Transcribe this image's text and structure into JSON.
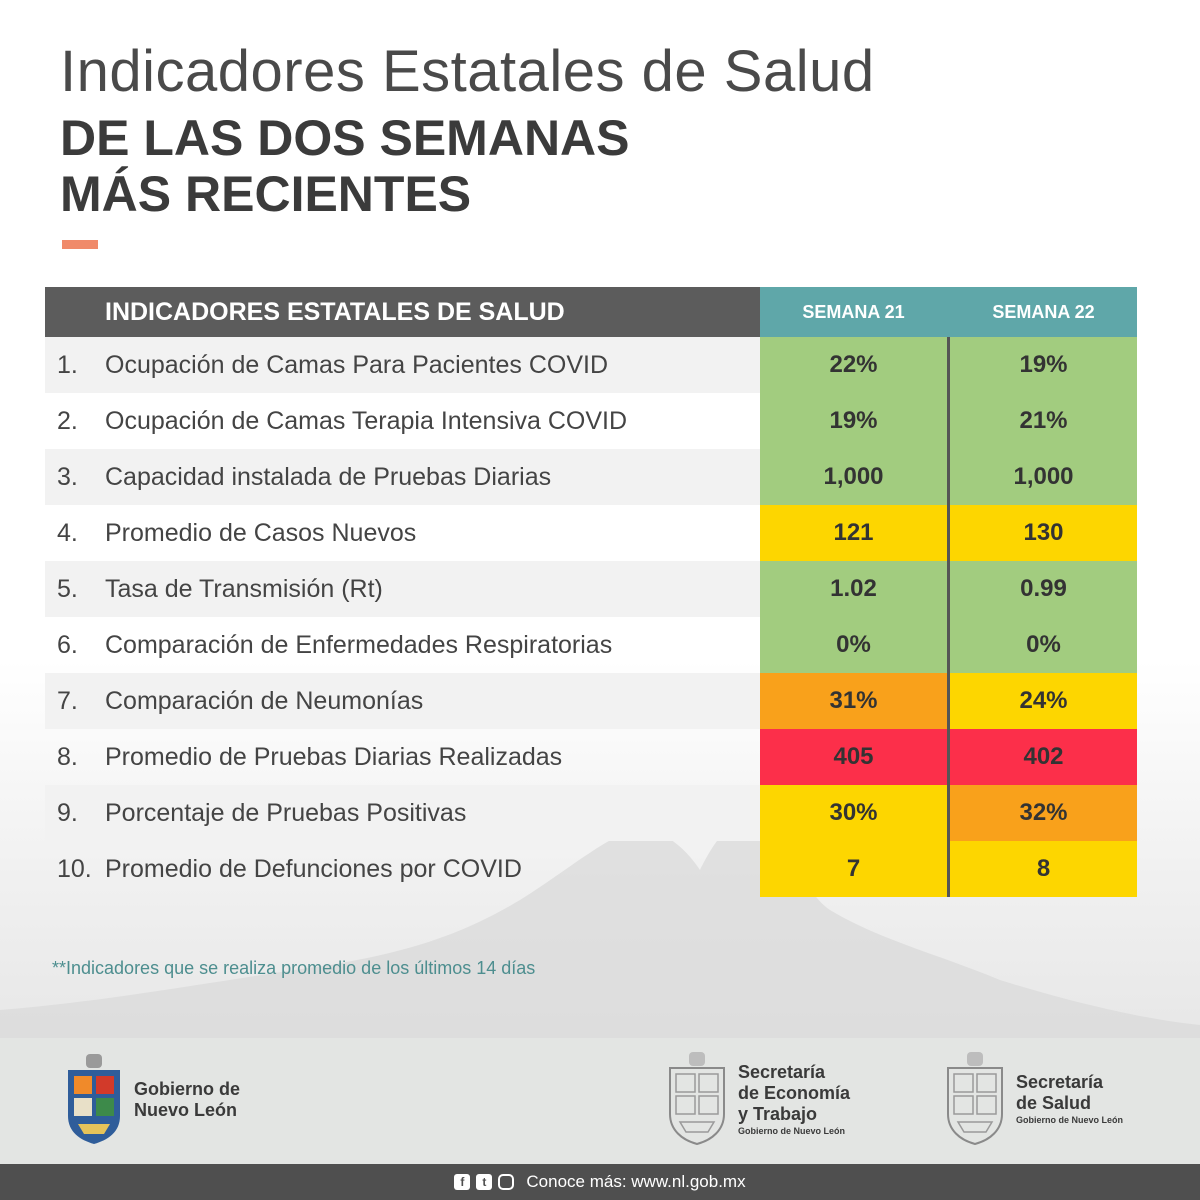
{
  "header": {
    "title_light": "Indicadores Estatales de Salud",
    "title_bold_line1": "DE LAS DOS SEMANAS",
    "title_bold_line2": "MÁS RECIENTES",
    "accent_color": "#f08a6a"
  },
  "table": {
    "header_main": "INDICADORES ESTATALES DE SALUD",
    "week1_label": "SEMANA 21",
    "week2_label": "SEMANA 22",
    "rows": [
      {
        "num": "1.",
        "label": "Ocupación de Camas Para Pacientes COVID",
        "w1": "22%",
        "w1_color": "#a2cc7f",
        "w2": "19%",
        "w2_color": "#a2cc7f"
      },
      {
        "num": "2.",
        "label": "Ocupación de Camas Terapia Intensiva COVID",
        "w1": "19%",
        "w1_color": "#a2cc7f",
        "w2": "21%",
        "w2_color": "#a2cc7f"
      },
      {
        "num": "3.",
        "label": "Capacidad instalada de Pruebas Diarias",
        "w1": "1,000",
        "w1_color": "#a2cc7f",
        "w2": "1,000",
        "w2_color": "#a2cc7f"
      },
      {
        "num": "4.",
        "label": "Promedio de Casos Nuevos",
        "w1": "121",
        "w1_color": "#fdd600",
        "w2": "130",
        "w2_color": "#fdd600"
      },
      {
        "num": "5.",
        "label": "Tasa de Transmisión (Rt)",
        "w1": "1.02",
        "w1_color": "#a2cc7f",
        "w2": "0.99",
        "w2_color": "#a2cc7f"
      },
      {
        "num": "6.",
        "label": "Comparación de Enfermedades Respiratorias",
        "w1": "0%",
        "w1_color": "#a2cc7f",
        "w2": "0%",
        "w2_color": "#a2cc7f"
      },
      {
        "num": "7.",
        "label": "Comparación de Neumonías",
        "w1": "31%",
        "w1_color": "#f9a11b",
        "w2": "24%",
        "w2_color": "#fdd600"
      },
      {
        "num": "8.",
        "label": "Promedio de Pruebas Diarias Realizadas",
        "w1": "405",
        "w1_color": "#fc2f4a",
        "w2": "402",
        "w2_color": "#fc2f4a"
      },
      {
        "num": "9.",
        "label": "Porcentaje de Pruebas Positivas",
        "w1": "30%",
        "w1_color": "#fdd600",
        "w2": "32%",
        "w2_color": "#f9a11b"
      },
      {
        "num": "10.",
        "label": "Promedio de Defunciones por COVID",
        "w1": "7",
        "w1_color": "#fdd600",
        "w2": "8",
        "w2_color": "#fdd600"
      }
    ]
  },
  "footnote": "**Indicadores que se realiza promedio de los últimos 14 días",
  "logos": {
    "gob_line1": "Gobierno de",
    "gob_line2": "Nuevo León",
    "eco_line1": "Secretaría",
    "eco_line2": "de Economía",
    "eco_line3": "y Trabajo",
    "eco_small": "Gobierno de Nuevo León",
    "salud_line1": "Secretaría",
    "salud_line2": "de Salud",
    "salud_small": "Gobierno de Nuevo León"
  },
  "bottom": {
    "text": "Conoce más: www.nl.gob.mx",
    "icons": [
      "facebook-icon",
      "twitter-icon",
      "instagram-icon"
    ]
  }
}
